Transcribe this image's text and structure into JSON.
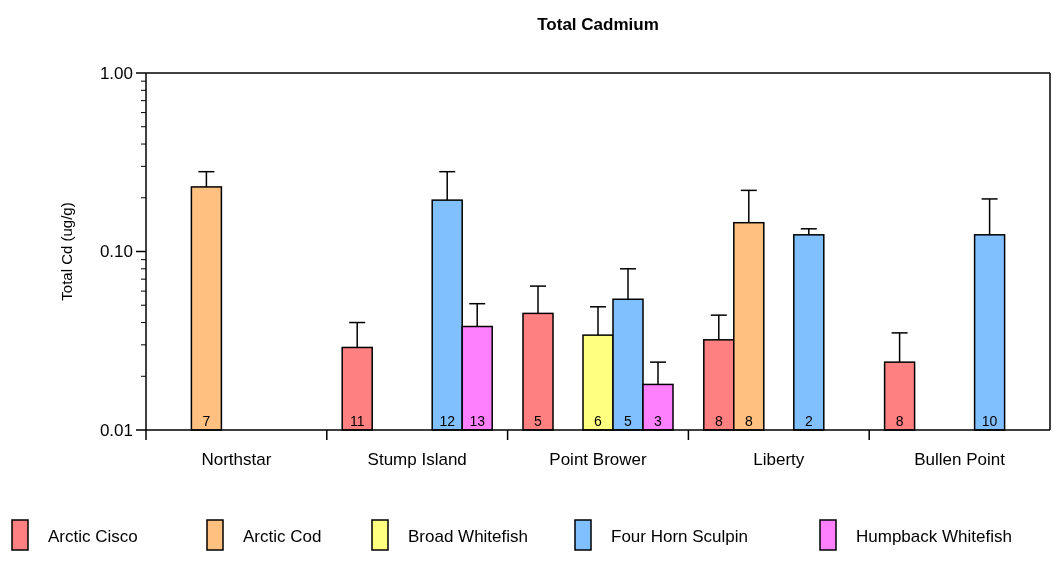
{
  "chart_data": {
    "type": "bar",
    "title": "Total Cadmium",
    "ylabel": "Total Cd (ug/g)",
    "categories": [
      "Northstar",
      "Stump Island",
      "Point Brower",
      "Liberty",
      "Bullen Point"
    ],
    "series": [
      {
        "name": "Arctic Cisco",
        "color": "#ff8080",
        "values": [
          null,
          0.029,
          0.045,
          0.032,
          0.024
        ],
        "errors": [
          null,
          [
            0.029,
            0.04
          ],
          [
            0.045,
            0.064
          ],
          [
            0.032,
            0.044
          ],
          [
            0.024,
            0.035
          ]
        ]
      },
      {
        "name": "Arctic Cod",
        "color": "#ffc080",
        "values": [
          0.23,
          null,
          null,
          0.145,
          null
        ],
        "errors": [
          [
            0.23,
            0.28
          ],
          null,
          null,
          [
            0.145,
            0.22
          ],
          null
        ]
      },
      {
        "name": "Broad Whitefish",
        "color": "#ffff80",
        "values": [
          null,
          null,
          0.034,
          null,
          null
        ],
        "errors": [
          null,
          null,
          [
            0.034,
            0.049
          ],
          null,
          null
        ]
      },
      {
        "name": "Four Horn Sculpin",
        "color": "#80c0ff",
        "values": [
          null,
          0.194,
          0.054,
          0.124,
          0.124
        ],
        "errors": [
          null,
          [
            0.194,
            0.28
          ],
          [
            0.054,
            0.08
          ],
          [
            0.124,
            0.134
          ],
          [
            0.124,
            0.197
          ]
        ]
      },
      {
        "name": "Humpback Whitefish",
        "color": "#ff80ff",
        "values": [
          null,
          0.038,
          0.018,
          null,
          null
        ],
        "errors": [
          null,
          [
            0.038,
            0.051
          ],
          [
            0.018,
            0.024
          ],
          null,
          null
        ]
      }
    ],
    "annotations": [
      "7",
      "11",
      "12",
      "13",
      "5",
      "6",
      "5",
      "3",
      "8",
      "8",
      "2",
      "8",
      "10"
    ],
    "log": true,
    "ylim": [
      0.01,
      1
    ],
    "yticks": [
      {
        "value": 0.01,
        "label": "0.01"
      },
      {
        "value": 0.1,
        "label": "0.10"
      },
      {
        "value": 1,
        "label": "1.00"
      }
    ],
    "grid": false,
    "legend": "bottom"
  }
}
